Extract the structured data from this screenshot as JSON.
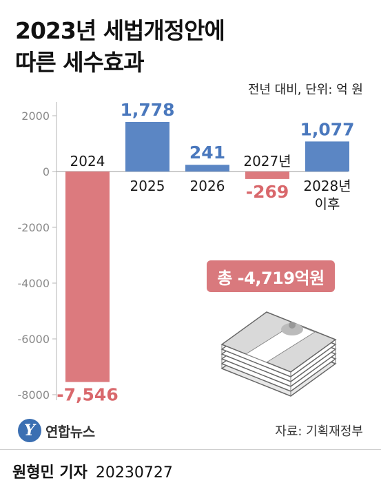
{
  "title_line1": "2023년 세법개정안에",
  "title_line2": "따른 세수효과",
  "unit_note": "전년 대비, 단위: 억 원",
  "total_badge": "총 -4,719억원",
  "logo": {
    "mark": "Y",
    "text": "연합뉴스"
  },
  "source": "자료: 기획재정부",
  "footer": {
    "reporter": "원형민 기자",
    "date": "20230727"
  },
  "colors": {
    "positive": "#5b86c4",
    "negative": "#dc7a7e",
    "positive_label": "#4a78bd",
    "negative_label": "#d9686c",
    "badge": "#d9797d",
    "axis": "#b5b5b5"
  },
  "chart_data": {
    "type": "bar",
    "categories": [
      "2024",
      "2025",
      "2026",
      "2027년",
      "2028년\n이후"
    ],
    "values": [
      -7546,
      1778,
      241,
      -269,
      1077
    ],
    "value_labels": [
      "-7,546",
      "1,778",
      "241",
      "-269",
      "1,077"
    ],
    "yticks": [
      2000,
      0,
      -2000,
      -4000,
      -6000,
      -8000
    ],
    "ylim": [
      -8000,
      2000
    ],
    "grid": false,
    "title": "2023년 세법개정안에 따른 세수효과",
    "ylabel": "",
    "xlabel": ""
  }
}
